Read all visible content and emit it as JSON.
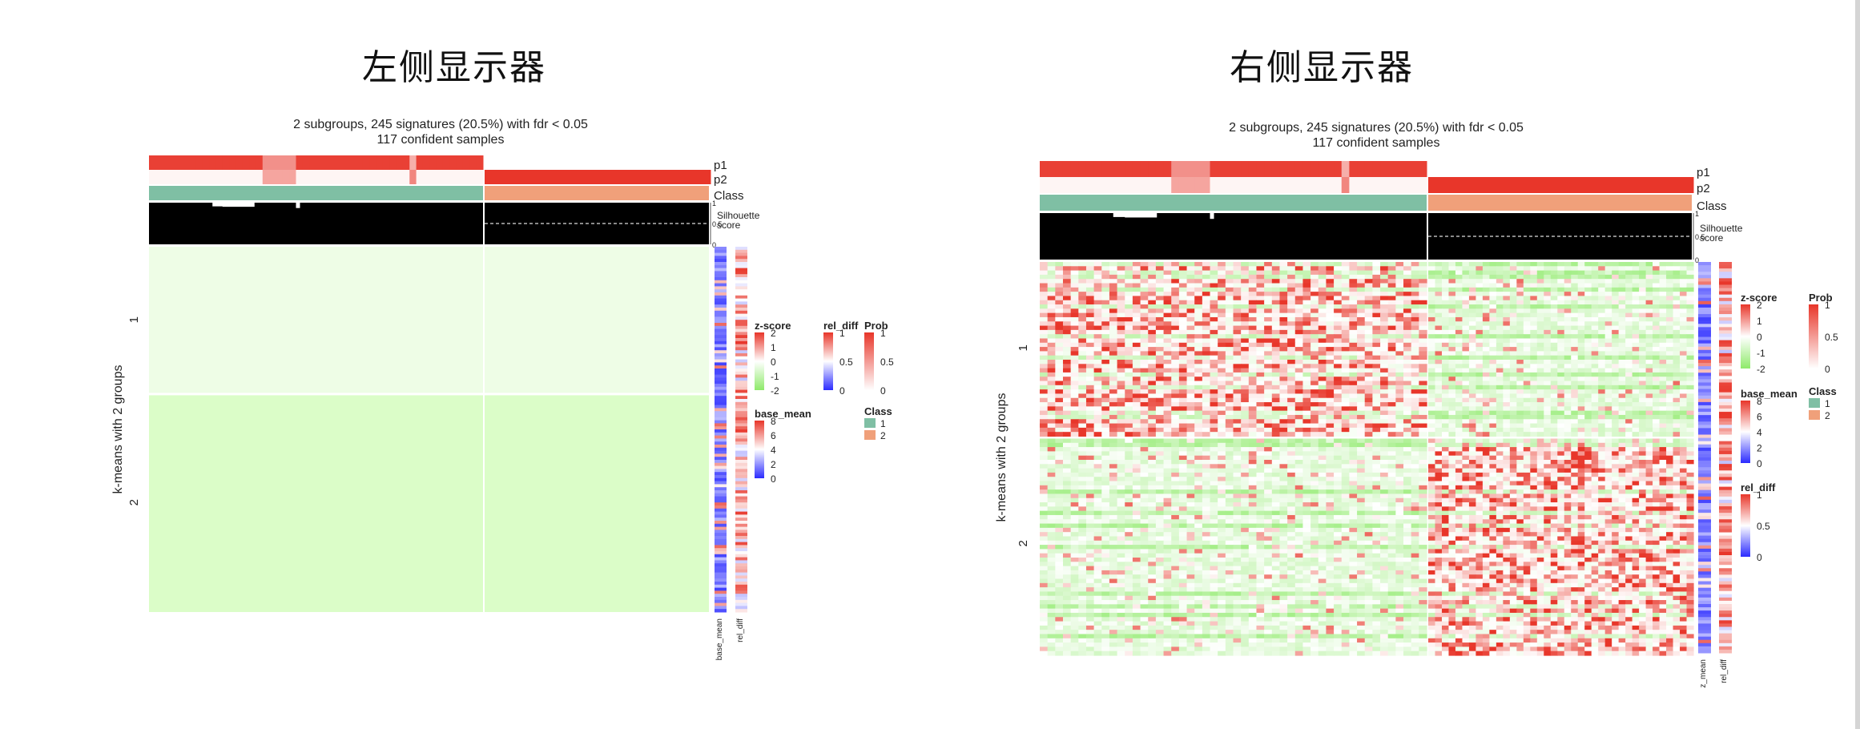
{
  "titles": {
    "left": "左侧显示器",
    "right": "右侧显示器"
  },
  "colors": {
    "class1": "#7fbfa4",
    "class2": "#f0a07a",
    "red": "#e8362a",
    "green": "#8eea6a",
    "blue": "#2b2bff",
    "black": "#000000"
  },
  "chart_data": [
    {
      "type": "heatmap",
      "panel": "left",
      "title": "2 subgroups, 245 signatures (20.5%) with fdr < 0.05",
      "subtitle": "117 confident samples",
      "top_annotations": [
        "p1",
        "p2",
        "Class"
      ],
      "silhouette": {
        "label_line1": "Silhouette",
        "label_line2": "score",
        "ticks": [
          "1",
          "0.5",
          "0"
        ]
      },
      "row_title": "k-means with 2 groups",
      "row_groups": [
        "1",
        "2"
      ],
      "column_groups": 2,
      "side_annotation_labels": [
        "base_mean",
        "rel_diff"
      ],
      "legends": [
        {
          "title": "z-score",
          "ticks": [
            "2",
            "1",
            "0",
            "-1",
            "-2"
          ]
        },
        {
          "title": "rel_diff",
          "ticks": [
            "1",
            "0.5",
            "0"
          ]
        },
        {
          "title": "Prob",
          "ticks": [
            "1",
            "0.5",
            "0"
          ]
        },
        {
          "title": "base_mean",
          "ticks": [
            "8",
            "6",
            "4",
            "2",
            "0"
          ]
        },
        {
          "title": "Class",
          "items": [
            "1",
            "2"
          ]
        }
      ]
    },
    {
      "type": "heatmap",
      "panel": "right",
      "title": "2 subgroups, 245 signatures (20.5%) with fdr < 0.05",
      "subtitle": "117 confident samples",
      "top_annotations": [
        "p1",
        "p2",
        "Class"
      ],
      "silhouette": {
        "label_line1": "Silhouette",
        "label_line2": "score",
        "ticks": [
          "1",
          "0.5",
          "0"
        ]
      },
      "row_title": "k-means with 2 groups",
      "row_groups": [
        "1",
        "2"
      ],
      "column_groups": 2,
      "side_annotation_labels": [
        "z_mean",
        "rel_diff"
      ],
      "legends": [
        {
          "title": "z-score",
          "ticks": [
            "2",
            "1",
            "0",
            "-1",
            "-2"
          ]
        },
        {
          "title": "Prob",
          "ticks": [
            "1",
            "0.5",
            "0"
          ]
        },
        {
          "title": "base_mean",
          "ticks": [
            "8",
            "6",
            "4",
            "2",
            "0"
          ]
        },
        {
          "title": "Class",
          "items": [
            "1",
            "2"
          ]
        },
        {
          "title": "rel_diff",
          "ticks": [
            "1",
            "0.5",
            "0"
          ]
        }
      ]
    }
  ]
}
